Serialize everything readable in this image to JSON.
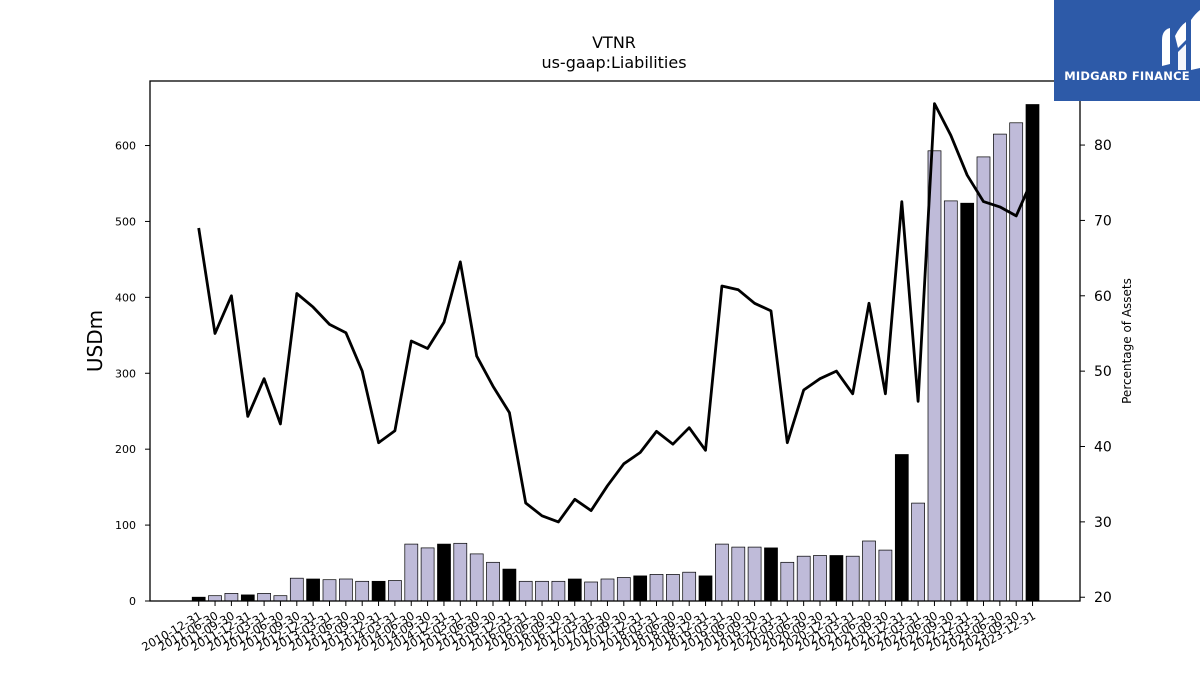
{
  "chart_data": {
    "type": "bar+line",
    "title": "VTNR",
    "subtitle": "us-gaap:Liabilities",
    "ylabel": "USDm",
    "y2label": "Percentage of Assets",
    "ylim": [
      0,
      685
    ],
    "y2lim": [
      19.5,
      88.5
    ],
    "yticks": [
      0,
      100,
      200,
      300,
      400,
      500,
      600
    ],
    "y2ticks": [
      20,
      30,
      40,
      50,
      60,
      70,
      80
    ],
    "colors": {
      "bar_quarter": "#bfbbd9",
      "bar_annual": "#000000",
      "line": "#000000"
    },
    "categories": [
      "2010-12-31",
      "2011-06-30",
      "2011-09-30",
      "2011-12-31",
      "2012-03-31",
      "2012-06-30",
      "2012-09-30",
      "2012-12-31",
      "2013-03-31",
      "2013-06-30",
      "2013-09-30",
      "2013-12-31",
      "2014-03-31",
      "2014-06-30",
      "2014-09-30",
      "2014-12-31",
      "2015-03-31",
      "2015-06-30",
      "2015-09-30",
      "2015-12-31",
      "2016-03-31",
      "2016-06-30",
      "2016-09-30",
      "2016-12-31",
      "2017-03-31",
      "2017-06-30",
      "2017-09-30",
      "2017-12-31",
      "2018-03-31",
      "2018-06-30",
      "2018-09-30",
      "2018-12-31",
      "2019-03-31",
      "2019-06-30",
      "2019-09-30",
      "2019-12-31",
      "2020-03-31",
      "2020-06-30",
      "2020-09-30",
      "2020-12-31",
      "2021-03-31",
      "2021-06-30",
      "2021-09-30",
      "2021-12-31",
      "2022-03-31",
      "2022-06-30",
      "2022-09-30",
      "2022-12-31",
      "2023-03-31",
      "2023-06-30",
      "2023-09-30",
      "2023-12-31"
    ],
    "liabilities": [
      5,
      7,
      10,
      8,
      10,
      7,
      30,
      29,
      28,
      29,
      26,
      26,
      27,
      75,
      70,
      75,
      76,
      62,
      51,
      42,
      26,
      26,
      26,
      29,
      25,
      29,
      31,
      33,
      35,
      35,
      38,
      33,
      75,
      71,
      71,
      70,
      51,
      59,
      60,
      60,
      59,
      79,
      67,
      193,
      129,
      593,
      527,
      524,
      585,
      615,
      630,
      654
    ],
    "annual": [
      true,
      false,
      false,
      true,
      false,
      false,
      false,
      true,
      false,
      false,
      false,
      true,
      false,
      false,
      false,
      true,
      false,
      false,
      false,
      true,
      false,
      false,
      false,
      true,
      false,
      false,
      false,
      true,
      false,
      false,
      false,
      true,
      false,
      false,
      false,
      true,
      false,
      false,
      false,
      true,
      false,
      false,
      false,
      true,
      false,
      false,
      false,
      true,
      false,
      false,
      false,
      true
    ],
    "pct_of_assets": [
      69,
      55,
      60,
      44,
      49,
      43,
      60.3,
      58.5,
      56.2,
      55.1,
      50,
      40.5,
      42.1,
      54,
      53,
      56.5,
      64.5,
      52,
      48,
      44.5,
      32.5,
      30.8,
      30,
      33,
      31.5,
      34.8,
      37.7,
      39.2,
      42,
      40.3,
      42.5,
      39.5,
      61.3,
      60.8,
      59,
      58,
      40.5,
      47.5,
      49,
      50,
      47,
      59,
      47,
      72.5,
      46,
      85.5,
      81.3,
      76,
      72.5,
      71.8,
      70.6,
      75.5
    ]
  },
  "logo": {
    "name": "MIDGARD FINANCE",
    "icon": "midgard-m-logo-icon"
  }
}
